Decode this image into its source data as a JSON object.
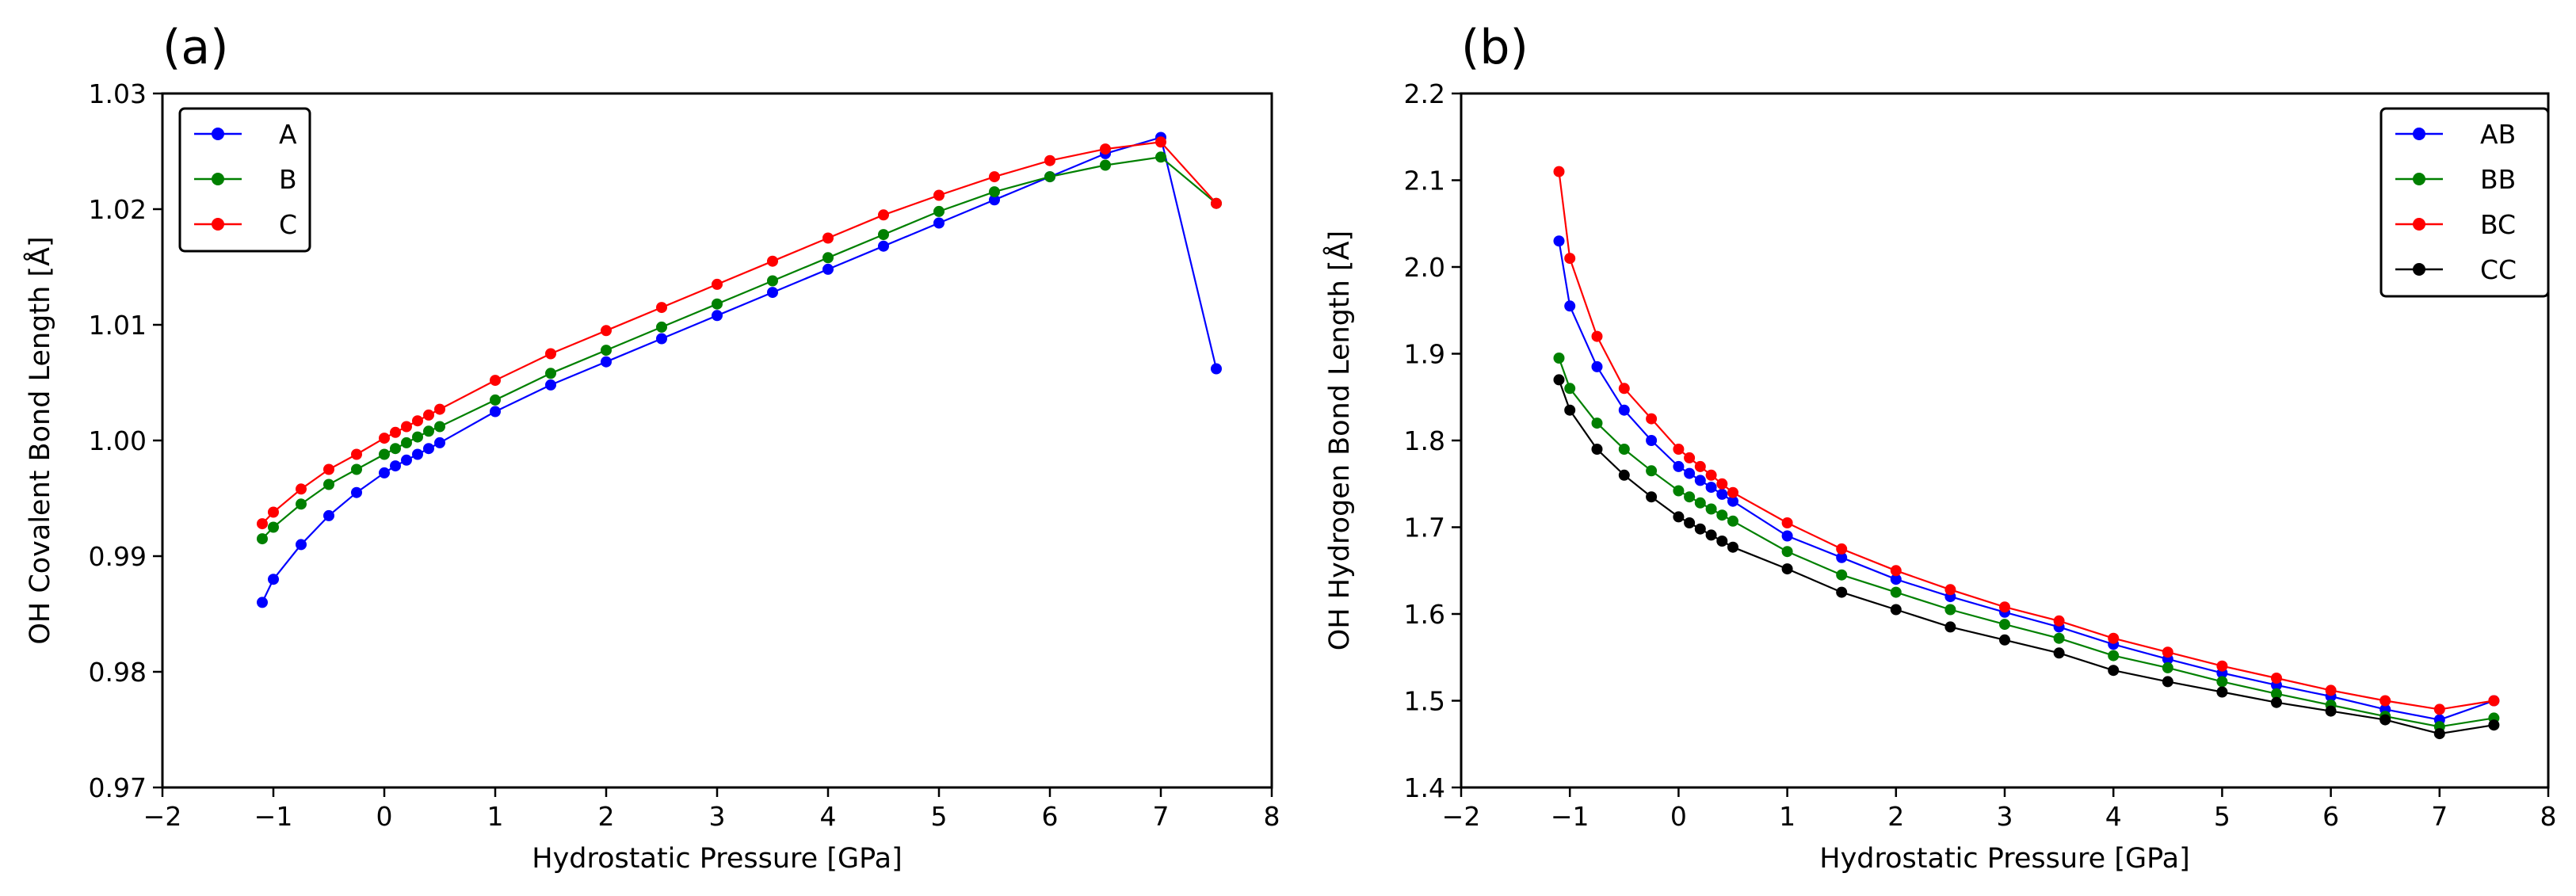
{
  "chart_data": [
    {
      "type": "line",
      "panel_label": "(a)",
      "xlabel": "Hydrostatic Pressure [GPa]",
      "ylabel": "OH Covalent Bond Length [Å]",
      "xlim": [
        -2,
        8
      ],
      "ylim": [
        0.97,
        1.03
      ],
      "xticks": [
        -2,
        -1,
        0,
        1,
        2,
        3,
        4,
        5,
        6,
        7,
        8
      ],
      "yticks": [
        0.97,
        0.98,
        0.99,
        1.0,
        1.01,
        1.02,
        1.03
      ],
      "x_tick_labels": [
        "−2",
        "−1",
        "0",
        "1",
        "2",
        "3",
        "4",
        "5",
        "6",
        "7",
        "8"
      ],
      "y_tick_labels": [
        "0.97",
        "0.98",
        "0.99",
        "1.00",
        "1.01",
        "1.02",
        "1.03"
      ],
      "x": [
        -1.1,
        -1.0,
        -0.75,
        -0.5,
        -0.25,
        0.0,
        0.1,
        0.2,
        0.3,
        0.4,
        0.5,
        1.0,
        1.5,
        2.0,
        2.5,
        3.0,
        3.5,
        4.0,
        4.5,
        5.0,
        5.5,
        6.0,
        6.5,
        7.0,
        7.5
      ],
      "grid": false,
      "legend_position": "top-left",
      "legend": [
        {
          "label": "A",
          "color": "#0000ff"
        },
        {
          "label": "B",
          "color": "#008000"
        },
        {
          "label": "C",
          "color": "#ff0000"
        }
      ],
      "series": [
        {
          "name": "A",
          "color": "#0000ff",
          "values": [
            0.986,
            0.988,
            0.991,
            0.9935,
            0.9955,
            0.9972,
            0.9978,
            0.9983,
            0.9988,
            0.9993,
            0.9998,
            1.0025,
            1.0048,
            1.0068,
            1.0088,
            1.0108,
            1.0128,
            1.0148,
            1.0168,
            1.0188,
            1.0208,
            1.0228,
            1.0248,
            1.0262,
            1.0062
          ]
        },
        {
          "name": "B",
          "color": "#008000",
          "values": [
            0.9915,
            0.9925,
            0.9945,
            0.9962,
            0.9975,
            0.9988,
            0.9993,
            0.9998,
            1.0003,
            1.0008,
            1.0012,
            1.0035,
            1.0058,
            1.0078,
            1.0098,
            1.0118,
            1.0138,
            1.0158,
            1.0178,
            1.0198,
            1.0215,
            1.0228,
            1.0238,
            1.0245,
            1.0205
          ]
        },
        {
          "name": "C",
          "color": "#ff0000",
          "values": [
            0.9928,
            0.9938,
            0.9958,
            0.9975,
            0.9988,
            1.0002,
            1.0007,
            1.0012,
            1.0017,
            1.0022,
            1.0027,
            1.0052,
            1.0075,
            1.0095,
            1.0115,
            1.0135,
            1.0155,
            1.0175,
            1.0195,
            1.0212,
            1.0228,
            1.0242,
            1.0252,
            1.0258,
            1.0205
          ]
        }
      ]
    },
    {
      "type": "line",
      "panel_label": "(b)",
      "xlabel": "Hydrostatic Pressure [GPa]",
      "ylabel": "OH Hydrogen Bond Length [Å]",
      "xlim": [
        -2,
        8
      ],
      "ylim": [
        1.4,
        2.2
      ],
      "xticks": [
        -2,
        -1,
        0,
        1,
        2,
        3,
        4,
        5,
        6,
        7,
        8
      ],
      "yticks": [
        1.4,
        1.5,
        1.6,
        1.7,
        1.8,
        1.9,
        2.0,
        2.1,
        2.2
      ],
      "x_tick_labels": [
        "−2",
        "−1",
        "0",
        "1",
        "2",
        "3",
        "4",
        "5",
        "6",
        "7",
        "8"
      ],
      "y_tick_labels": [
        "1.4",
        "1.5",
        "1.6",
        "1.7",
        "1.8",
        "1.9",
        "2.0",
        "2.1",
        "2.2"
      ],
      "x": [
        -1.1,
        -1.0,
        -0.75,
        -0.5,
        -0.25,
        0.0,
        0.1,
        0.2,
        0.3,
        0.4,
        0.5,
        1.0,
        1.5,
        2.0,
        2.5,
        3.0,
        3.5,
        4.0,
        4.5,
        5.0,
        5.5,
        6.0,
        6.5,
        7.0,
        7.5
      ],
      "grid": false,
      "legend_position": "top-right",
      "legend": [
        {
          "label": "AB",
          "color": "#0000ff"
        },
        {
          "label": "BB",
          "color": "#008000"
        },
        {
          "label": "BC",
          "color": "#ff0000"
        },
        {
          "label": "CC",
          "color": "#000000"
        }
      ],
      "series": [
        {
          "name": "AB",
          "color": "#0000ff",
          "values": [
            2.03,
            1.955,
            1.885,
            1.835,
            1.8,
            1.77,
            1.762,
            1.754,
            1.746,
            1.738,
            1.73,
            1.69,
            1.665,
            1.64,
            1.62,
            1.602,
            1.585,
            1.565,
            1.548,
            1.532,
            1.518,
            1.505,
            1.49,
            1.478,
            1.5
          ]
        },
        {
          "name": "BB",
          "color": "#008000",
          "values": [
            1.895,
            1.86,
            1.82,
            1.79,
            1.765,
            1.742,
            1.735,
            1.728,
            1.721,
            1.714,
            1.707,
            1.672,
            1.645,
            1.625,
            1.605,
            1.588,
            1.572,
            1.552,
            1.538,
            1.522,
            1.508,
            1.495,
            1.482,
            1.47,
            1.48
          ]
        },
        {
          "name": "BC",
          "color": "#ff0000",
          "values": [
            2.11,
            2.01,
            1.92,
            1.86,
            1.825,
            1.79,
            1.78,
            1.77,
            1.76,
            1.75,
            1.74,
            1.705,
            1.675,
            1.65,
            1.628,
            1.608,
            1.592,
            1.572,
            1.556,
            1.54,
            1.526,
            1.512,
            1.5,
            1.49,
            1.5
          ]
        },
        {
          "name": "CC",
          "color": "#000000",
          "values": [
            1.87,
            1.835,
            1.79,
            1.76,
            1.735,
            1.712,
            1.705,
            1.698,
            1.691,
            1.684,
            1.677,
            1.652,
            1.625,
            1.605,
            1.585,
            1.57,
            1.555,
            1.535,
            1.522,
            1.51,
            1.498,
            1.488,
            1.478,
            1.462,
            1.472
          ]
        }
      ]
    }
  ]
}
